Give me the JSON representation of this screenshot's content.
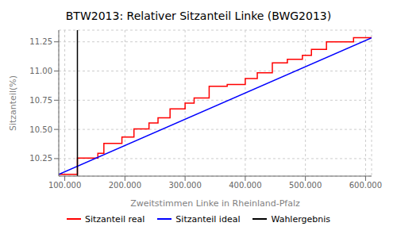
{
  "chart_data": {
    "type": "line",
    "title": "BTW2013: Relativer Sitzanteil Linke (BWG2013)",
    "xlabel": "Zweitstimmen Linke in Rheinland-Pfalz",
    "ylabel": "Sitzanteil(%)",
    "xlim": [
      90000,
      610000
    ],
    "ylim": [
      10.1,
      11.35
    ],
    "xticks": [
      {
        "value": 100000,
        "label": "100.000"
      },
      {
        "value": 200000,
        "label": "200.000"
      },
      {
        "value": 300000,
        "label": "300.000"
      },
      {
        "value": 400000,
        "label": "400.000"
      },
      {
        "value": 500000,
        "label": "500.000"
      },
      {
        "value": 600000,
        "label": "600.000"
      }
    ],
    "yticks": [
      10.25,
      {
        "value": 10.5,
        "label": "10.50"
      },
      10.75,
      {
        "value": 11.0,
        "label": "11.00"
      },
      11.25
    ],
    "grid": true,
    "legend": "bottom",
    "series": [
      {
        "name": "Sitzanteil real",
        "color": "red",
        "x": [
          90000,
          121000,
          121000,
          155000,
          155000,
          165000,
          165000,
          195000,
          195000,
          215000,
          215000,
          240000,
          240000,
          255000,
          255000,
          275000,
          275000,
          300000,
          300000,
          315000,
          315000,
          340000,
          340000,
          370000,
          370000,
          400000,
          400000,
          420000,
          420000,
          445000,
          445000,
          470000,
          470000,
          495000,
          495000,
          510000,
          510000,
          535000,
          535000,
          580000,
          580000,
          610000
        ],
        "values": [
          10.115,
          10.115,
          10.255,
          10.255,
          10.295,
          10.295,
          10.38,
          10.38,
          10.435,
          10.435,
          10.505,
          10.505,
          10.555,
          10.555,
          10.6,
          10.6,
          10.675,
          10.675,
          10.725,
          10.725,
          10.77,
          10.77,
          10.87,
          10.87,
          10.885,
          10.885,
          10.935,
          10.935,
          10.985,
          10.985,
          11.07,
          11.07,
          11.1,
          11.1,
          11.135,
          11.135,
          11.185,
          11.185,
          11.25,
          11.25,
          11.285,
          11.285
        ]
      },
      {
        "name": "Sitzanteil ideal",
        "color": "blue",
        "x": [
          90000,
          610000
        ],
        "values": [
          10.115,
          11.285
        ]
      },
      {
        "name": "Wahlergebnis",
        "color": "black",
        "type": "vline",
        "x": [
          121000
        ]
      }
    ]
  }
}
